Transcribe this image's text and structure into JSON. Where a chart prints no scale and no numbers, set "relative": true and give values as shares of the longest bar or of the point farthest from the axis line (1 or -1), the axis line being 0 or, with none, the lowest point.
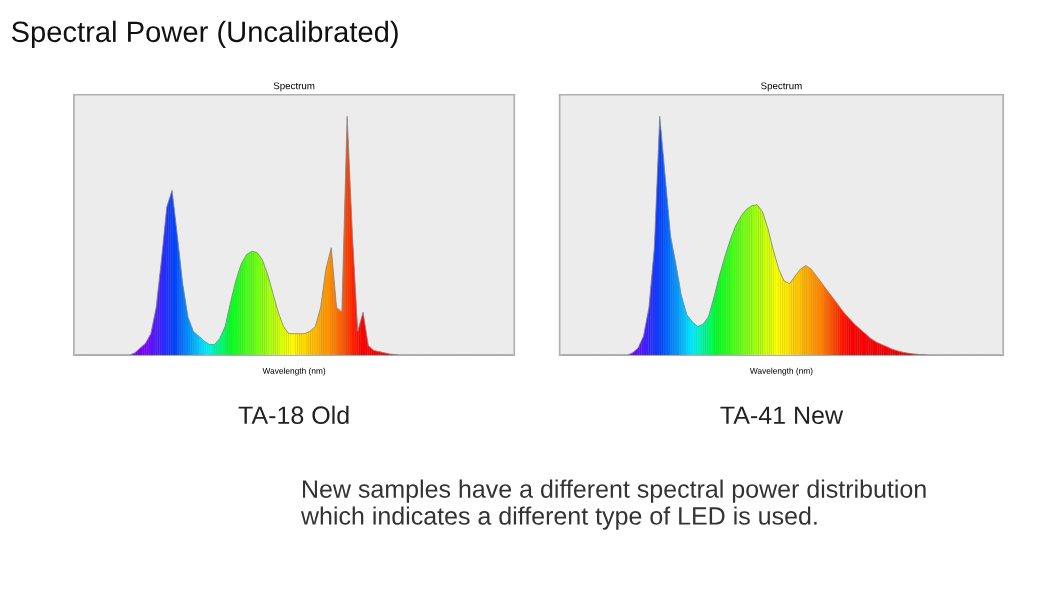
{
  "chart_data": [
    {
      "type": "area",
      "title": "Spectrum",
      "xlabel": "Wavelength (nm)",
      "subtitle": "TA-18 Old",
      "relative": true,
      "annotations": [
        "Spectral Power (Uncalibrated)"
      ],
      "categories": [
        null,
        null,
        null,
        null,
        null,
        null,
        null,
        null,
        null,
        null,
        null,
        null,
        null,
        null,
        null,
        null,
        null,
        null,
        null,
        null,
        null,
        null,
        null,
        null,
        null,
        null,
        null,
        null,
        null,
        null,
        null,
        null,
        null,
        null,
        null,
        null,
        null,
        null,
        null,
        null,
        null,
        null,
        null,
        null,
        null,
        null,
        null,
        null,
        null,
        null,
        null,
        null,
        null,
        null,
        null,
        null,
        null,
        null,
        null,
        null,
        null,
        null,
        null,
        null,
        null,
        null,
        null,
        null,
        null,
        null,
        null,
        null,
        null,
        null,
        null,
        null,
        null,
        null,
        null,
        null,
        null,
        null,
        null
      ],
      "series": [
        {
          "color": "#8c8c8c",
          "values": [
            0,
            0,
            0,
            0,
            0,
            0,
            0,
            0,
            0,
            0,
            0,
            0.01,
            0.03,
            0.05,
            0.09,
            0.2,
            0.4,
            0.62,
            0.69,
            0.5,
            0.3,
            0.16,
            0.1,
            0.08,
            0.06,
            0.045,
            0.045,
            0.07,
            0.12,
            0.22,
            0.31,
            0.38,
            0.42,
            0.435,
            0.43,
            0.4,
            0.34,
            0.26,
            0.18,
            0.12,
            0.09,
            0.09,
            0.09,
            0.09,
            0.1,
            0.12,
            0.2,
            0.36,
            0.45,
            0.2,
            0.18,
            1,
            0.5,
            0.1,
            0.18,
            0.04,
            0.02,
            0.015,
            0.01,
            0.005,
            0.003,
            0,
            0,
            0,
            0,
            0,
            0,
            0,
            0,
            0,
            0,
            0,
            0,
            0,
            0,
            0,
            0,
            0,
            0,
            0,
            0,
            0,
            0
          ]
        }
      ]
    },
    {
      "type": "area",
      "title": "Spectrum",
      "xlabel": "Wavelength (nm)",
      "subtitle": "TA-41 New",
      "relative": true,
      "annotations": [
        "New samples have a different spectral power distribution\nwhich indicates a different type of LED is used."
      ],
      "categories": [
        null,
        null,
        null,
        null,
        null,
        null,
        null,
        null,
        null,
        null,
        null,
        null,
        null,
        null,
        null,
        null,
        null,
        null,
        null,
        null,
        null,
        null,
        null,
        null,
        null,
        null,
        null,
        null,
        null,
        null,
        null,
        null,
        null,
        null,
        null,
        null,
        null,
        null,
        null,
        null,
        null,
        null,
        null,
        null,
        null,
        null,
        null,
        null,
        null,
        null,
        null,
        null,
        null,
        null,
        null,
        null,
        null,
        null,
        null,
        null,
        null,
        null,
        null,
        null,
        null,
        null,
        null,
        null,
        null,
        null,
        null,
        null,
        null,
        null,
        null,
        null,
        null,
        null,
        null,
        null,
        null,
        null
      ],
      "series": [
        {
          "color": "#8c8c8c",
          "values": [
            0,
            0,
            0,
            0,
            0,
            0,
            0,
            0,
            0,
            0,
            0,
            0,
            0,
            0.01,
            0.03,
            0.08,
            0.2,
            0.45,
            1,
            0.75,
            0.5,
            0.38,
            0.25,
            0.17,
            0.14,
            0.12,
            0.13,
            0.16,
            0.24,
            0.33,
            0.41,
            0.48,
            0.54,
            0.58,
            0.61,
            0.625,
            0.63,
            0.6,
            0.53,
            0.44,
            0.36,
            0.31,
            0.3,
            0.33,
            0.36,
            0.375,
            0.36,
            0.33,
            0.3,
            0.27,
            0.24,
            0.21,
            0.18,
            0.155,
            0.13,
            0.11,
            0.09,
            0.07,
            0.055,
            0.045,
            0.035,
            0.025,
            0.018,
            0.012,
            0.008,
            0.005,
            0.003,
            0.002,
            0,
            0,
            0,
            0,
            0,
            0,
            0,
            0,
            0,
            0,
            0,
            0,
            0,
            0
          ]
        }
      ]
    }
  ]
}
